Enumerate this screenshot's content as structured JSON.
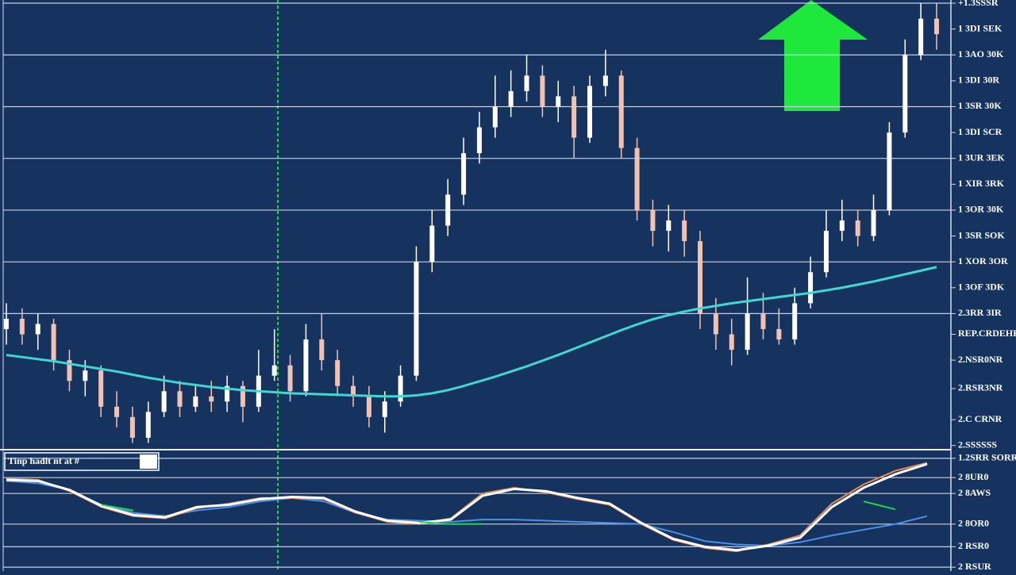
{
  "chart_data": [
    {
      "type": "candlestick",
      "open": [
        37,
        39,
        36,
        38,
        31,
        27,
        29,
        22,
        20,
        16,
        21,
        25,
        22,
        24,
        23,
        26,
        22,
        28,
        30,
        25,
        35,
        31,
        26,
        24,
        20,
        23,
        28,
        50,
        57,
        63,
        71,
        76,
        80,
        83,
        86,
        80,
        82,
        74,
        84,
        86,
        72,
        60,
        56,
        58,
        54,
        40,
        36,
        33,
        40,
        37,
        35,
        42,
        48,
        56,
        58,
        55,
        60,
        75,
        90,
        97
      ],
      "high": [
        42,
        41,
        40,
        39,
        33,
        31,
        30,
        25,
        22,
        23,
        28,
        27,
        26,
        27,
        28,
        27,
        33,
        37,
        32,
        38,
        40,
        33,
        28,
        26,
        25,
        30,
        53,
        60,
        66,
        74,
        79,
        86,
        87,
        90,
        88,
        85,
        84,
        86,
        91,
        87,
        74,
        62,
        61,
        60,
        56,
        43,
        39,
        47,
        44,
        41,
        45,
        51,
        60,
        62,
        60,
        63,
        77,
        93,
        100,
        100
      ],
      "low": [
        34,
        34,
        33,
        29,
        25,
        24,
        20,
        18,
        15,
        15,
        20,
        20,
        21,
        21,
        21,
        19,
        21,
        27,
        23,
        24,
        29,
        24,
        22,
        18,
        17,
        22,
        27,
        48,
        55,
        61,
        69,
        74,
        78,
        81,
        78,
        77,
        70,
        73,
        82,
        70,
        58,
        53,
        52,
        51,
        37,
        33,
        30,
        32,
        35,
        34,
        34,
        41,
        47,
        54,
        53,
        54,
        59,
        74,
        89,
        91
      ],
      "close": [
        39,
        36,
        38,
        31,
        27,
        29,
        22,
        20,
        16,
        21,
        25,
        22,
        24,
        23,
        26,
        22,
        28,
        30,
        25,
        35,
        31,
        26,
        24,
        20,
        23,
        28,
        50,
        57,
        63,
        71,
        76,
        80,
        83,
        86,
        80,
        82,
        74,
        84,
        86,
        72,
        60,
        56,
        58,
        54,
        40,
        36,
        33,
        40,
        37,
        35,
        42,
        48,
        56,
        58,
        55,
        60,
        75,
        90,
        97,
        94
      ],
      "up_color": "#ffffff",
      "down_color": "#f0c2b4",
      "ma": {
        "color": "#3fd8d0",
        "values": [
          32,
          31.6,
          31.2,
          30.8,
          30.3,
          29.8,
          29.3,
          28.8,
          28.2,
          27.6,
          27.1,
          26.6,
          26.2,
          25.8,
          25.5,
          25.2,
          25,
          24.8,
          24.6,
          24.5,
          24.4,
          24.3,
          24.2,
          24.1,
          24,
          24,
          24.2,
          24.6,
          25.2,
          26,
          26.9,
          27.8,
          28.8,
          29.8,
          30.9,
          32,
          33.2,
          34.4,
          35.6,
          36.8,
          37.9,
          38.9,
          39.7,
          40.4,
          41,
          41.5,
          42,
          42.4,
          42.8,
          43.2,
          43.6,
          44,
          44.5,
          45,
          45.6,
          46.2,
          46.9,
          47.6,
          48.3,
          49
        ]
      },
      "ylim": [
        14,
        100
      ],
      "yticks": [
        {
          "value": 100,
          "label": "+1.3SSSR"
        },
        {
          "value": 95,
          "label": "1 3DI SEK"
        },
        {
          "value": 90,
          "label": "1 3AO 30K"
        },
        {
          "value": 85,
          "label": "1 3DI 30R"
        },
        {
          "value": 80,
          "label": "1 3SR 30K"
        },
        {
          "value": 75,
          "label": "1 3DI SCR"
        },
        {
          "value": 70,
          "label": "1 3UR 3EK"
        },
        {
          "value": 65,
          "label": "1 XIR 3RK"
        },
        {
          "value": 60,
          "label": "1 3OR 30K"
        },
        {
          "value": 55,
          "label": "1 3SR SOK"
        },
        {
          "value": 50,
          "label": "1 XOR 3OR"
        },
        {
          "value": 45,
          "label": "1 3OF 3DK"
        },
        {
          "value": 40,
          "label": "2.3RR 3IR"
        },
        {
          "value": 36,
          "label": "REP.CRDEHR"
        },
        {
          "value": 31,
          "label": "2.NSR0NR"
        },
        {
          "value": 25.5,
          "label": "2.RSR3NR"
        },
        {
          "value": 19.5,
          "label": "2.C CRNR"
        },
        {
          "value": 14.5,
          "label": "2.SSSSSS"
        }
      ],
      "grid": true
    },
    {
      "type": "line",
      "label_box": "Tinp hadlt nt at #",
      "series": [
        {
          "color": "#4a90e8",
          "values": [
            78,
            76,
            70,
            57,
            50,
            47,
            52,
            55,
            60,
            63,
            60,
            50,
            44,
            43,
            42,
            44,
            44,
            43,
            42,
            41,
            40,
            33,
            25,
            22,
            21,
            24,
            30,
            35,
            40,
            47
          ]
        },
        {
          "color": "#f08a4a",
          "values": [
            80,
            79,
            69,
            55,
            47,
            45,
            54,
            58,
            63,
            63,
            62,
            50,
            42,
            40,
            45,
            67,
            72,
            68,
            62,
            57,
            40,
            26,
            19,
            16,
            22,
            30,
            58,
            75,
            87,
            94
          ]
        },
        {
          "color": "#ffffff",
          "values": [
            79,
            78,
            70,
            56,
            48,
            46,
            55,
            57,
            62,
            64,
            63,
            51,
            43,
            41,
            44,
            65,
            71,
            69,
            63,
            58,
            41,
            27,
            20,
            17,
            21,
            28,
            55,
            72,
            84,
            93
          ]
        },
        {
          "color": "#22d84a",
          "values": [
            null,
            null,
            null,
            57,
            52,
            null,
            null,
            null,
            null,
            null,
            null,
            null,
            null,
            42,
            40,
            40,
            null,
            null,
            null,
            null,
            null,
            null,
            null,
            null,
            null,
            null,
            null,
            60,
            53,
            null
          ]
        }
      ],
      "ylim": [
        0,
        100
      ],
      "yticks": [
        {
          "value": 98,
          "label": "1.2SRR SORR"
        },
        {
          "value": 81,
          "label": "2 8UR0"
        },
        {
          "value": 67,
          "label": "2 8AWS"
        },
        {
          "value": 40,
          "label": "2 8OR0"
        },
        {
          "value": 20,
          "label": "2 RSR0"
        },
        {
          "value": 2,
          "label": "2 RSUR"
        }
      ],
      "grid": true
    }
  ]
}
